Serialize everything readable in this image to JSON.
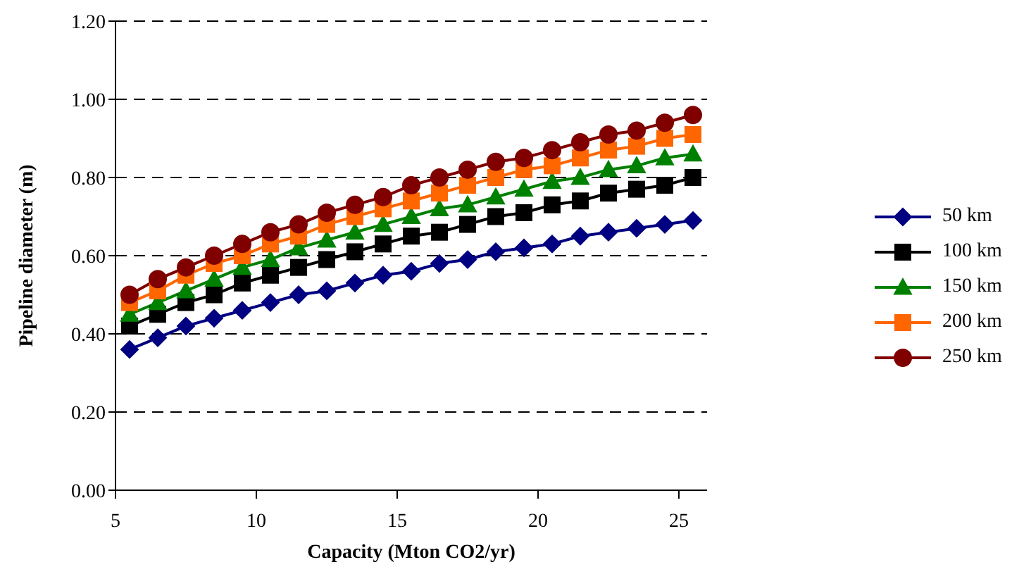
{
  "chart_data": {
    "type": "line",
    "xlabel": "Capacity (Mton CO2/yr)",
    "ylabel": "Pipeline diameter (m)",
    "x": [
      5.5,
      6.5,
      7.5,
      8.5,
      9.5,
      10.5,
      11.5,
      12.5,
      13.5,
      14.5,
      15.5,
      16.5,
      17.5,
      18.5,
      19.5,
      20.5,
      21.5,
      22.5,
      23.5,
      24.5,
      25.5
    ],
    "series": [
      {
        "name": "50 km",
        "color": "#000080",
        "marker": "diamond",
        "values": [
          0.36,
          0.39,
          0.42,
          0.44,
          0.46,
          0.48,
          0.5,
          0.51,
          0.53,
          0.55,
          0.56,
          0.58,
          0.59,
          0.61,
          0.62,
          0.63,
          0.65,
          0.66,
          0.67,
          0.68,
          0.69
        ]
      },
      {
        "name": "100 km",
        "color": "#000000",
        "marker": "square",
        "values": [
          0.42,
          0.45,
          0.48,
          0.5,
          0.53,
          0.55,
          0.57,
          0.59,
          0.61,
          0.63,
          0.65,
          0.66,
          0.68,
          0.7,
          0.71,
          0.73,
          0.74,
          0.76,
          0.77,
          0.78,
          0.8
        ]
      },
      {
        "name": "150 km",
        "color": "#008000",
        "marker": "triangle",
        "values": [
          0.45,
          0.48,
          0.51,
          0.54,
          0.57,
          0.59,
          0.62,
          0.64,
          0.66,
          0.68,
          0.7,
          0.72,
          0.73,
          0.75,
          0.77,
          0.79,
          0.8,
          0.82,
          0.83,
          0.85,
          0.86
        ]
      },
      {
        "name": "200 km",
        "color": "#ff6600",
        "marker": "square",
        "values": [
          0.48,
          0.51,
          0.55,
          0.58,
          0.6,
          0.63,
          0.65,
          0.68,
          0.7,
          0.72,
          0.74,
          0.76,
          0.78,
          0.8,
          0.82,
          0.83,
          0.85,
          0.87,
          0.88,
          0.9,
          0.91
        ]
      },
      {
        "name": "250 km",
        "color": "#800000",
        "marker": "circle",
        "values": [
          0.5,
          0.54,
          0.57,
          0.6,
          0.63,
          0.66,
          0.68,
          0.71,
          0.73,
          0.75,
          0.78,
          0.8,
          0.82,
          0.84,
          0.85,
          0.87,
          0.89,
          0.91,
          0.92,
          0.94,
          0.96
        ]
      }
    ],
    "xlim": [
      5,
      26
    ],
    "xticks": [
      5,
      10,
      15,
      20,
      25
    ],
    "ylim": [
      0,
      1.2
    ],
    "yticks": [
      {
        "value": 0,
        "label": "0.00"
      },
      {
        "value": 0.2,
        "label": "0.20"
      },
      {
        "value": 0.4,
        "label": "0.40"
      },
      {
        "value": 0.6,
        "label": "0.60"
      },
      {
        "value": 0.8,
        "label": "0.80"
      },
      {
        "value": 1.0,
        "label": "1.00"
      },
      {
        "value": 1.2,
        "label": "1.20"
      }
    ],
    "grid": "y",
    "legend": "right",
    "line_style": "solid"
  }
}
